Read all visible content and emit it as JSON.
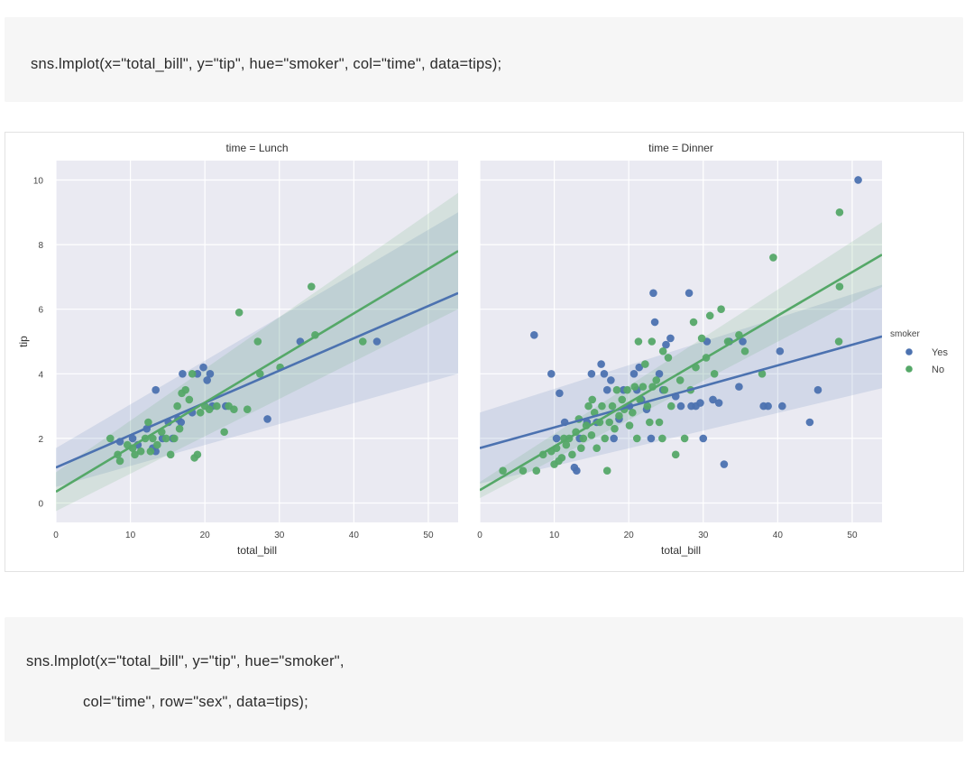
{
  "code_blocks": [
    {
      "lines": [
        "sns.lmplot(x=\"total_bill\", y=\"tip\", hue=\"smoker\", col=\"time\", data=tips);"
      ]
    },
    {
      "lines": [
        "sns.lmplot(x=\"total_bill\", y=\"tip\", hue=\"smoker\",",
        "col=\"time\", row=\"sex\", data=tips);"
      ]
    }
  ],
  "colors": {
    "Yes": "#4c72b0",
    "No": "#55a868",
    "panel_bg": "#eaeaf2",
    "grid": "#ffffff"
  },
  "chart_data": {
    "type": "scatter",
    "facet_col": "time",
    "hue": "smoker",
    "ylabel": "tip",
    "xlim": [
      0,
      54
    ],
    "ylim": [
      -0.6,
      10.6
    ],
    "xticks": [
      0,
      10,
      20,
      30,
      40,
      50
    ],
    "yticks": [
      0,
      2,
      4,
      6,
      8,
      10
    ],
    "grid": true,
    "legend": {
      "title": "smoker",
      "entries": [
        "Yes",
        "No"
      ],
      "placement": "right"
    },
    "panels": [
      {
        "title": "time = Lunch",
        "xlabel": "total_bill",
        "series": [
          {
            "name": "Yes",
            "points": [
              [
                8.6,
                1.9
              ],
              [
                10.3,
                2.0
              ],
              [
                11.0,
                1.8
              ],
              [
                12.2,
                2.3
              ],
              [
                13.4,
                3.5
              ],
              [
                13.0,
                1.7
              ],
              [
                14.3,
                2.0
              ],
              [
                15.1,
                2.5
              ],
              [
                15.7,
                2.0
              ],
              [
                16.4,
                2.6
              ],
              [
                16.8,
                2.5
              ],
              [
                17.0,
                4.0
              ],
              [
                18.3,
                2.8
              ],
              [
                19.0,
                4.0
              ],
              [
                19.8,
                4.2
              ],
              [
                20.3,
                3.8
              ],
              [
                20.7,
                4.0
              ],
              [
                21.0,
                3.0
              ],
              [
                22.8,
                3.0
              ],
              [
                28.4,
                2.6
              ],
              [
                32.8,
                5.0
              ],
              [
                43.1,
                5.0
              ],
              [
                13.4,
                1.6
              ]
            ],
            "fit": {
              "intercept": 1.1,
              "slope": 0.1,
              "ci_at_xmin": 0.6,
              "ci_at_xmax": 2.5
            }
          },
          {
            "name": "No",
            "points": [
              [
                7.3,
                2.0
              ],
              [
                8.3,
                1.5
              ],
              [
                8.6,
                1.3
              ],
              [
                9.6,
                1.8
              ],
              [
                10.3,
                1.7
              ],
              [
                10.6,
                1.5
              ],
              [
                11.4,
                1.6
              ],
              [
                12.0,
                2.0
              ],
              [
                12.4,
                2.5
              ],
              [
                12.7,
                1.6
              ],
              [
                13.0,
                2.0
              ],
              [
                13.6,
                1.8
              ],
              [
                14.2,
                2.2
              ],
              [
                14.8,
                2.0
              ],
              [
                15.4,
                1.5
              ],
              [
                15.9,
                2.0
              ],
              [
                16.3,
                3.0
              ],
              [
                16.6,
                2.3
              ],
              [
                16.9,
                3.4
              ],
              [
                17.4,
                3.5
              ],
              [
                17.9,
                3.2
              ],
              [
                18.3,
                4.0
              ],
              [
                18.6,
                1.4
              ],
              [
                19.0,
                1.5
              ],
              [
                19.4,
                2.8
              ],
              [
                20.0,
                3.0
              ],
              [
                20.6,
                2.9
              ],
              [
                21.6,
                3.0
              ],
              [
                22.6,
                2.2
              ],
              [
                23.2,
                3.0
              ],
              [
                24.6,
                5.9
              ],
              [
                25.7,
                2.9
              ],
              [
                27.1,
                5.0
              ],
              [
                27.4,
                4.0
              ],
              [
                30.1,
                4.2
              ],
              [
                34.3,
                6.7
              ],
              [
                34.8,
                5.2
              ],
              [
                41.2,
                5.0
              ],
              [
                23.9,
                2.9
              ]
            ],
            "fit": {
              "intercept": 0.35,
              "slope": 0.138,
              "ci_at_xmin": 0.6,
              "ci_at_xmax": 1.8
            }
          }
        ]
      },
      {
        "title": "time = Dinner",
        "xlabel": "total_bill",
        "series": [
          {
            "name": "Yes",
            "points": [
              [
                7.3,
                5.2
              ],
              [
                9.6,
                4.0
              ],
              [
                10.3,
                2.0
              ],
              [
                11.4,
                2.5
              ],
              [
                12.7,
                1.1
              ],
              [
                13.0,
                1.0
              ],
              [
                13.4,
                2.0
              ],
              [
                14.4,
                2.5
              ],
              [
                15.0,
                4.0
              ],
              [
                15.7,
                2.5
              ],
              [
                16.3,
                4.3
              ],
              [
                16.7,
                4.0
              ],
              [
                17.1,
                3.5
              ],
              [
                17.6,
                3.8
              ],
              [
                18.0,
                2.0
              ],
              [
                18.7,
                2.6
              ],
              [
                19.3,
                3.5
              ],
              [
                20.1,
                3.0
              ],
              [
                20.7,
                4.0
              ],
              [
                21.1,
                3.5
              ],
              [
                21.7,
                3.2
              ],
              [
                22.4,
                2.9
              ],
              [
                23.0,
                2.0
              ],
              [
                23.3,
                6.5
              ],
              [
                23.5,
                5.6
              ],
              [
                24.1,
                4.0
              ],
              [
                24.6,
                3.5
              ],
              [
                25.0,
                4.9
              ],
              [
                25.6,
                5.1
              ],
              [
                26.3,
                3.3
              ],
              [
                27.0,
                3.0
              ],
              [
                28.1,
                6.5
              ],
              [
                28.4,
                3.0
              ],
              [
                29.0,
                3.0
              ],
              [
                29.6,
                3.1
              ],
              [
                30.0,
                2.0
              ],
              [
                30.5,
                5.0
              ],
              [
                31.3,
                3.2
              ],
              [
                32.1,
                3.1
              ],
              [
                32.8,
                1.2
              ],
              [
                33.5,
                5.0
              ],
              [
                34.8,
                3.6
              ],
              [
                35.3,
                5.0
              ],
              [
                38.1,
                3.0
              ],
              [
                38.7,
                3.0
              ],
              [
                40.3,
                4.7
              ],
              [
                40.6,
                3.0
              ],
              [
                44.3,
                2.5
              ],
              [
                45.4,
                3.5
              ],
              [
                50.8,
                10.0
              ],
              [
                10.7,
                3.4
              ],
              [
                21.4,
                4.2
              ]
            ],
            "fit": {
              "intercept": 1.7,
              "slope": 0.064,
              "ci_at_xmin": 1.1,
              "ci_at_xmax": 1.6
            }
          },
          {
            "name": "No",
            "points": [
              [
                3.1,
                1.0
              ],
              [
                5.8,
                1.0
              ],
              [
                7.6,
                1.0
              ],
              [
                8.5,
                1.5
              ],
              [
                9.6,
                1.6
              ],
              [
                10.0,
                1.2
              ],
              [
                10.3,
                1.7
              ],
              [
                10.6,
                1.3
              ],
              [
                11.0,
                1.4
              ],
              [
                11.3,
                2.0
              ],
              [
                11.6,
                1.8
              ],
              [
                12.0,
                2.0
              ],
              [
                12.4,
                1.5
              ],
              [
                12.9,
                2.2
              ],
              [
                13.3,
                2.6
              ],
              [
                13.6,
                1.7
              ],
              [
                13.9,
                2.0
              ],
              [
                14.3,
                2.4
              ],
              [
                14.6,
                3.0
              ],
              [
                15.0,
                2.1
              ],
              [
                15.4,
                2.8
              ],
              [
                15.7,
                1.7
              ],
              [
                16.1,
                2.5
              ],
              [
                16.4,
                3.0
              ],
              [
                16.8,
                2.0
              ],
              [
                17.1,
                1.0
              ],
              [
                17.4,
                2.5
              ],
              [
                17.8,
                3.0
              ],
              [
                18.1,
                2.3
              ],
              [
                18.4,
                3.5
              ],
              [
                18.7,
                2.7
              ],
              [
                19.1,
                3.2
              ],
              [
                19.4,
                2.9
              ],
              [
                19.8,
                3.5
              ],
              [
                20.1,
                2.4
              ],
              [
                20.5,
                2.8
              ],
              [
                20.8,
                3.6
              ],
              [
                21.1,
                2.0
              ],
              [
                21.5,
                3.2
              ],
              [
                21.9,
                3.6
              ],
              [
                22.2,
                4.3
              ],
              [
                22.5,
                3.0
              ],
              [
                22.8,
                2.5
              ],
              [
                23.2,
                3.6
              ],
              [
                23.7,
                3.8
              ],
              [
                24.1,
                2.5
              ],
              [
                24.5,
                2.0
              ],
              [
                24.8,
                3.5
              ],
              [
                25.3,
                4.5
              ],
              [
                25.7,
                3.0
              ],
              [
                26.3,
                1.5
              ],
              [
                26.9,
                3.8
              ],
              [
                27.5,
                2.0
              ],
              [
                28.3,
                3.5
              ],
              [
                28.7,
                5.6
              ],
              [
                29.0,
                4.2
              ],
              [
                29.8,
                5.1
              ],
              [
                30.4,
                4.5
              ],
              [
                30.9,
                5.8
              ],
              [
                31.5,
                4.0
              ],
              [
                32.4,
                6.0
              ],
              [
                33.3,
                5.0
              ],
              [
                34.8,
                5.2
              ],
              [
                35.6,
                4.7
              ],
              [
                37.9,
                4.0
              ],
              [
                39.4,
                7.6
              ],
              [
                48.3,
                9.0
              ],
              [
                48.3,
                6.7
              ],
              [
                48.2,
                5.0
              ],
              [
                21.3,
                5.0
              ],
              [
                23.1,
                5.0
              ],
              [
                24.6,
                4.7
              ],
              [
                15.1,
                3.2
              ]
            ],
            "fit": {
              "intercept": 0.4,
              "slope": 0.135,
              "ci_at_xmin": 0.25,
              "ci_at_xmax": 1.0
            }
          }
        ]
      }
    ]
  }
}
